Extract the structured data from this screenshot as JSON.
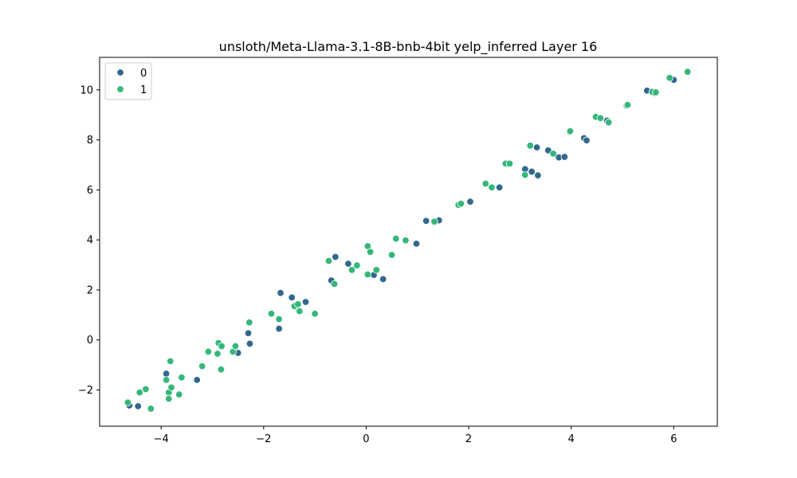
{
  "chart_data": {
    "type": "scatter",
    "title": "unsloth/Meta-Llama-3.1-8B-bnb-4bit yelp_inferred Layer 16",
    "xlabel": "",
    "ylabel": "",
    "xlim": [
      -5.2,
      6.85
    ],
    "ylim": [
      -3.45,
      11.3
    ],
    "xticks": [
      -4,
      -2,
      0,
      2,
      4,
      6
    ],
    "yticks": [
      -2,
      0,
      2,
      4,
      6,
      8,
      10
    ],
    "xtick_labels": [
      "−4",
      "−2",
      "0",
      "2",
      "4",
      "6"
    ],
    "ytick_labels": [
      "−2",
      "0",
      "2",
      "4",
      "6",
      "8",
      "10"
    ],
    "grid": false,
    "legend_position": "top-left",
    "series": [
      {
        "name": "0",
        "color": "#31688e",
        "points": [
          [
            -4.62,
            -2.62
          ],
          [
            -4.45,
            -2.65
          ],
          [
            -3.9,
            -1.35
          ],
          [
            -3.3,
            -1.6
          ],
          [
            -2.5,
            -0.52
          ],
          [
            -2.3,
            0.27
          ],
          [
            -2.27,
            -0.15
          ],
          [
            -1.7,
            0.45
          ],
          [
            -1.67,
            1.88
          ],
          [
            -1.45,
            1.7
          ],
          [
            -1.18,
            1.52
          ],
          [
            -0.6,
            3.32
          ],
          [
            -0.68,
            2.38
          ],
          [
            -0.35,
            3.05
          ],
          [
            0.15,
            2.6
          ],
          [
            0.33,
            2.43
          ],
          [
            0.98,
            3.85
          ],
          [
            1.17,
            4.76
          ],
          [
            1.42,
            4.78
          ],
          [
            2.03,
            5.53
          ],
          [
            2.6,
            6.1
          ],
          [
            3.1,
            6.83
          ],
          [
            3.23,
            6.73
          ],
          [
            3.35,
            6.58
          ],
          [
            3.33,
            7.7
          ],
          [
            3.55,
            7.58
          ],
          [
            3.76,
            7.3
          ],
          [
            3.87,
            7.32
          ],
          [
            3.97,
            8.32
          ],
          [
            4.25,
            8.07
          ],
          [
            4.3,
            7.98
          ],
          [
            4.7,
            8.77
          ],
          [
            5.48,
            9.97
          ],
          [
            5.63,
            9.87
          ],
          [
            6.0,
            10.4
          ]
        ]
      },
      {
        "name": "1",
        "color": "#35b779",
        "points": [
          [
            -4.65,
            -2.5
          ],
          [
            -4.42,
            -2.1
          ],
          [
            -4.3,
            -1.97
          ],
          [
            -4.2,
            -2.75
          ],
          [
            -3.85,
            -2.1
          ],
          [
            -3.85,
            -2.35
          ],
          [
            -3.8,
            -1.9
          ],
          [
            -3.9,
            -1.6
          ],
          [
            -3.82,
            -0.85
          ],
          [
            -3.65,
            -2.18
          ],
          [
            -3.6,
            -1.5
          ],
          [
            -3.2,
            -1.05
          ],
          [
            -3.08,
            -0.47
          ],
          [
            -2.9,
            -0.55
          ],
          [
            -2.88,
            -0.12
          ],
          [
            -2.82,
            -0.25
          ],
          [
            -2.83,
            -1.18
          ],
          [
            -2.6,
            -0.47
          ],
          [
            -2.55,
            -0.25
          ],
          [
            -2.28,
            0.7
          ],
          [
            -1.7,
            0.83
          ],
          [
            -1.85,
            1.05
          ],
          [
            -1.4,
            1.35
          ],
          [
            -1.33,
            1.43
          ],
          [
            -1.3,
            1.15
          ],
          [
            -1.0,
            1.05
          ],
          [
            -0.73,
            3.16
          ],
          [
            -0.62,
            2.24
          ],
          [
            -0.28,
            2.8
          ],
          [
            -0.18,
            2.98
          ],
          [
            0.03,
            3.75
          ],
          [
            0.08,
            3.52
          ],
          [
            0.03,
            2.62
          ],
          [
            0.2,
            2.8
          ],
          [
            0.5,
            3.4
          ],
          [
            0.58,
            4.05
          ],
          [
            0.77,
            3.98
          ],
          [
            1.33,
            4.73
          ],
          [
            1.8,
            5.4
          ],
          [
            1.85,
            5.45
          ],
          [
            2.33,
            6.25
          ],
          [
            2.45,
            6.1
          ],
          [
            2.72,
            7.05
          ],
          [
            2.8,
            7.05
          ],
          [
            3.1,
            6.6
          ],
          [
            3.2,
            7.77
          ],
          [
            3.65,
            7.45
          ],
          [
            3.98,
            8.35
          ],
          [
            4.48,
            8.92
          ],
          [
            4.57,
            8.87
          ],
          [
            4.73,
            8.7
          ],
          [
            5.08,
            9.37
          ],
          [
            5.1,
            9.4
          ],
          [
            5.58,
            9.92
          ],
          [
            5.65,
            9.9
          ],
          [
            5.92,
            10.48
          ],
          [
            6.27,
            10.72
          ]
        ]
      }
    ]
  }
}
